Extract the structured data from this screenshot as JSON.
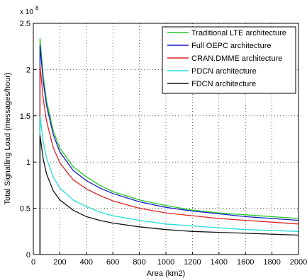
{
  "chart_data": {
    "type": "line",
    "xlabel": "Area (km2)",
    "ylabel": "Total Signalling Load (messages/hour)",
    "y_multiplier_label": "x 10",
    "y_multiplier_exp": "8",
    "xlim": [
      0,
      2000
    ],
    "ylim": [
      0,
      2.5
    ],
    "x_ticks": [
      "0",
      "200",
      "400",
      "600",
      "800",
      "1000",
      "1200",
      "1400",
      "1600",
      "1800",
      "2000"
    ],
    "y_ticks": [
      "0",
      "0.5",
      "1",
      "1.5",
      "2",
      "2.5"
    ],
    "grid": true,
    "legend_position": "top-right",
    "x": [
      50,
      75,
      100,
      150,
      200,
      300,
      400,
      500,
      600,
      800,
      1000,
      1200,
      1400,
      1600,
      1800,
      2000
    ],
    "series": [
      {
        "name": "Traditional LTE architecture",
        "color": "#22cc22",
        "values": [
          2.34,
          1.93,
          1.66,
          1.34,
          1.15,
          0.95,
          0.84,
          0.75,
          0.68,
          0.59,
          0.53,
          0.48,
          0.45,
          0.43,
          0.41,
          0.39
        ]
      },
      {
        "name": "Full OEPC architecture",
        "color": "#1a1acc",
        "values": [
          2.26,
          1.87,
          1.61,
          1.3,
          1.11,
          0.91,
          0.8,
          0.72,
          0.66,
          0.57,
          0.51,
          0.47,
          0.44,
          0.41,
          0.39,
          0.37
        ]
      },
      {
        "name": "CRAN.DMME architecture",
        "color": "#dd2222",
        "values": [
          2.05,
          1.68,
          1.44,
          1.16,
          0.99,
          0.81,
          0.71,
          0.64,
          0.58,
          0.5,
          0.45,
          0.42,
          0.39,
          0.37,
          0.35,
          0.33
        ]
      },
      {
        "name": "PDCN architecture",
        "color": "#22dddd",
        "values": [
          1.5,
          1.22,
          1.04,
          0.84,
          0.72,
          0.59,
          0.52,
          0.46,
          0.42,
          0.37,
          0.33,
          0.31,
          0.29,
          0.27,
          0.26,
          0.25
        ]
      },
      {
        "name": "FDCN architecture",
        "color": "#111111",
        "values": [
          1.29,
          1.03,
          0.87,
          0.69,
          0.59,
          0.48,
          0.41,
          0.37,
          0.34,
          0.3,
          0.27,
          0.25,
          0.24,
          0.23,
          0.22,
          0.21
        ]
      }
    ]
  }
}
